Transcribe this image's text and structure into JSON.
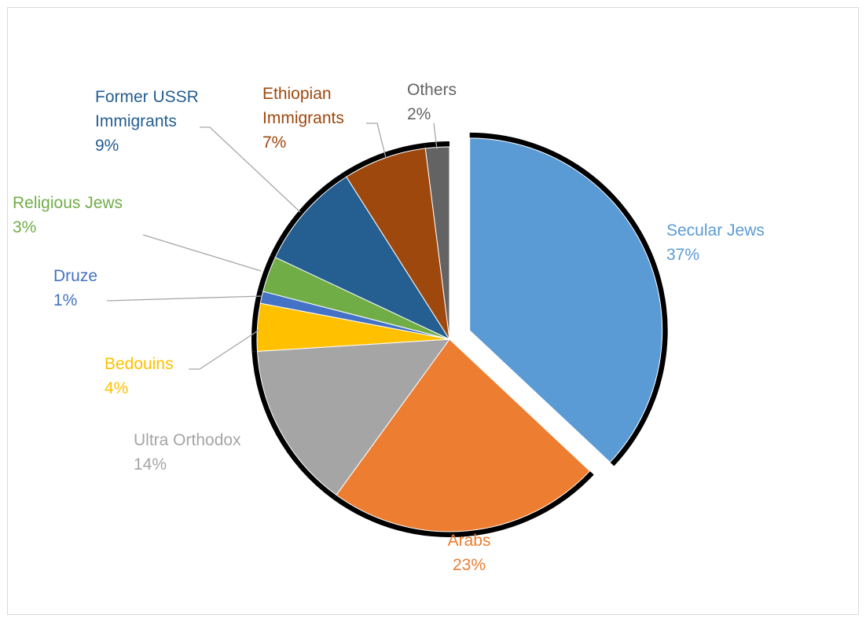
{
  "chart_data": {
    "type": "pie",
    "title": "",
    "exploded": "Secular Jews",
    "categories": [
      "Secular Jews",
      "Arabs",
      "Ultra Orthodox",
      "Bedouins",
      "Druze",
      "Religious Jews",
      "Former USSR Immigrants",
      "Ethiopian Immigrants",
      "Others"
    ],
    "values": [
      37,
      23,
      14,
      4,
      1,
      3,
      9,
      7,
      2
    ],
    "value_labels": [
      "37%",
      "23%",
      "14%",
      "4%",
      "1%",
      "3%",
      "9%",
      "7%",
      "2%"
    ],
    "colors": [
      "#5b9bd5",
      "#ed7d31",
      "#a5a5a5",
      "#ffc000",
      "#4472c4",
      "#70ad47",
      "#255e91",
      "#9e480e",
      "#636363"
    ],
    "label_lines": [
      [
        "Secular Jews",
        "37%"
      ],
      [
        "Arabs",
        "23%"
      ],
      [
        "Ultra Orthodox",
        "14%"
      ],
      [
        "Bedouins",
        "4%"
      ],
      [
        "Druze",
        "1%"
      ],
      [
        "Religious Jews",
        "3%"
      ],
      [
        "Former USSR",
        "Immigrants",
        "9%"
      ],
      [
        "Ethiopian",
        "Immigrants",
        "7%"
      ],
      [
        "Others",
        "2%"
      ]
    ],
    "legend": "none",
    "data_labels": "outside with leader lines"
  }
}
